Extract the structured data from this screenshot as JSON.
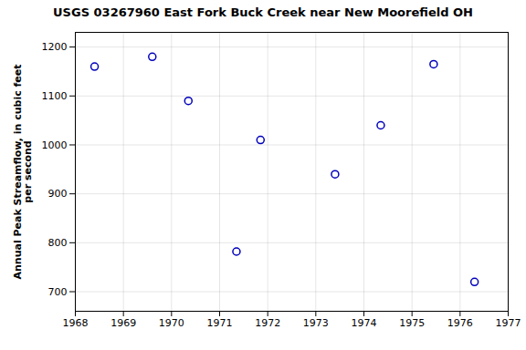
{
  "chart_data": {
    "type": "scatter",
    "title": "USGS 03267960 East Fork Buck Creek near New Moorefield OH",
    "ylabel": "Annual Peak Streamflow, in cubic feet\nper second",
    "x": [
      1968.4,
      1969.6,
      1970.35,
      1971.35,
      1971.85,
      1973.4,
      1974.35,
      1975.45,
      1976.3
    ],
    "values": [
      1160,
      1180,
      1090,
      782,
      1010,
      940,
      1040,
      1165,
      720
    ],
    "xlim": [
      1968,
      1977
    ],
    "ylim": [
      660,
      1230
    ],
    "xticks": [
      1968,
      1969,
      1970,
      1971,
      1972,
      1973,
      1974,
      1975,
      1976,
      1977
    ],
    "yticks": [
      700,
      800,
      900,
      1000,
      1100,
      1200
    ],
    "color": "#0000bb",
    "marker": "circle",
    "grid": true
  }
}
